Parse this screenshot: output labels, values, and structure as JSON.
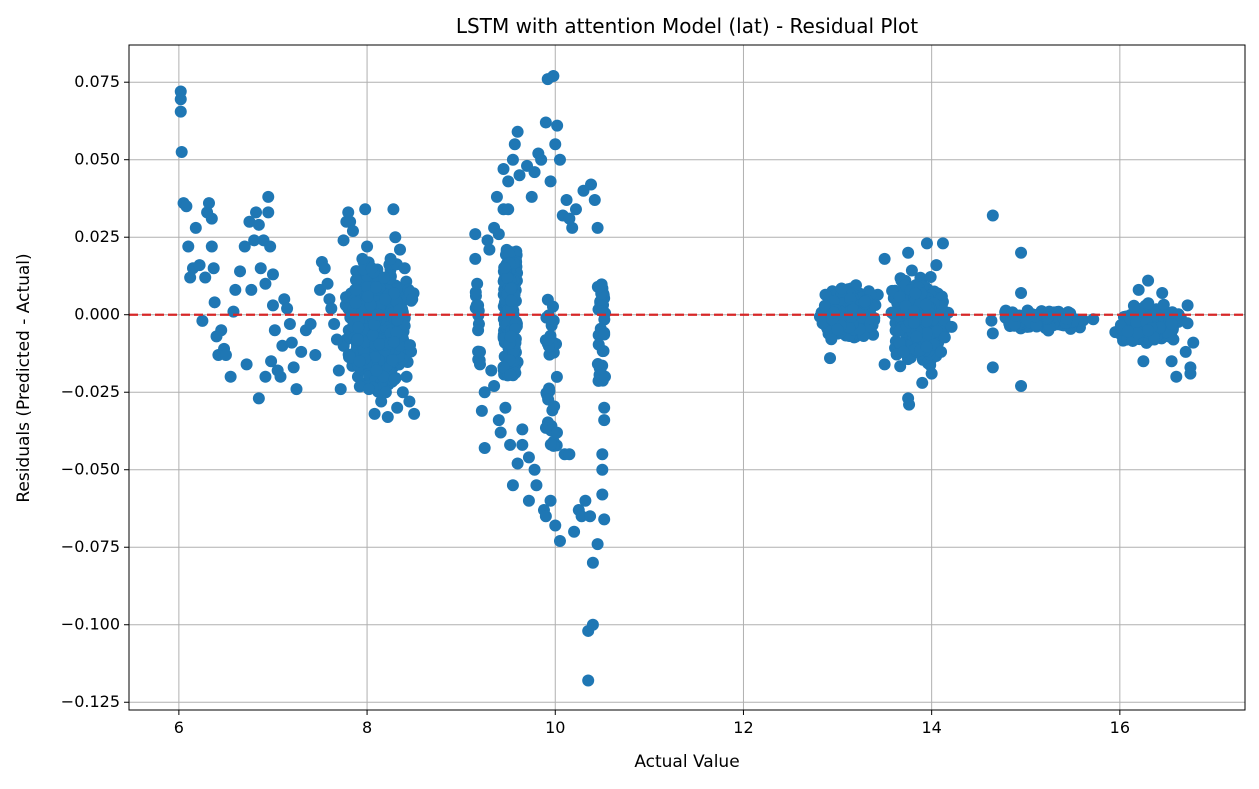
{
  "chart_data": {
    "type": "scatter",
    "title": "LSTM with attention Model (lat) - Residual Plot",
    "xlabel": "Actual Value",
    "ylabel": "Residuals (Predicted - Actual)",
    "xlim": [
      5.47,
      17.33
    ],
    "ylim": [
      -0.1275,
      0.087
    ],
    "xticks": [
      6,
      8,
      10,
      12,
      14,
      16
    ],
    "yticks": [
      -0.125,
      -0.1,
      -0.075,
      -0.05,
      -0.025,
      0.0,
      0.025,
      0.05,
      0.075
    ],
    "xtick_labels": [
      "6",
      "8",
      "10",
      "12",
      "14",
      "16"
    ],
    "ytick_labels": [
      "−0.125",
      "−0.100",
      "−0.075",
      "−0.050",
      "−0.025",
      "0.000",
      "0.025",
      "0.050",
      "0.075"
    ],
    "grid": true,
    "reference_line": {
      "y": 0.0,
      "style": "dashed",
      "color": "#d62728"
    },
    "marker_color": "#1f77b4",
    "points": [
      [
        6.02,
        0.072
      ],
      [
        6.02,
        0.0695
      ],
      [
        6.02,
        0.0655
      ],
      [
        6.03,
        0.0525
      ],
      [
        6.05,
        0.036
      ],
      [
        6.08,
        0.035
      ],
      [
        6.1,
        0.022
      ],
      [
        6.12,
        0.012
      ],
      [
        6.15,
        0.015
      ],
      [
        6.18,
        0.028
      ],
      [
        6.22,
        0.016
      ],
      [
        6.25,
        -0.002
      ],
      [
        6.28,
        0.012
      ],
      [
        6.3,
        0.033
      ],
      [
        6.32,
        0.036
      ],
      [
        6.35,
        0.031
      ],
      [
        6.35,
        0.022
      ],
      [
        6.37,
        0.015
      ],
      [
        6.38,
        0.004
      ],
      [
        6.4,
        -0.007
      ],
      [
        6.42,
        -0.013
      ],
      [
        6.45,
        -0.005
      ],
      [
        6.48,
        -0.011
      ],
      [
        6.5,
        -0.013
      ],
      [
        6.55,
        -0.02
      ],
      [
        6.58,
        0.001
      ],
      [
        6.6,
        0.008
      ],
      [
        6.65,
        0.014
      ],
      [
        6.7,
        0.022
      ],
      [
        6.72,
        -0.016
      ],
      [
        6.75,
        0.03
      ],
      [
        6.77,
        0.008
      ],
      [
        6.8,
        0.024
      ],
      [
        6.82,
        0.033
      ],
      [
        6.85,
        0.029
      ],
      [
        6.85,
        -0.027
      ],
      [
        6.87,
        0.015
      ],
      [
        6.9,
        0.024
      ],
      [
        6.92,
        0.01
      ],
      [
        6.92,
        -0.02
      ],
      [
        6.95,
        0.038
      ],
      [
        6.95,
        0.033
      ],
      [
        6.97,
        0.022
      ],
      [
        6.98,
        -0.015
      ],
      [
        7.0,
        0.013
      ],
      [
        7.0,
        0.003
      ],
      [
        7.02,
        -0.005
      ],
      [
        7.05,
        -0.018
      ],
      [
        7.08,
        -0.02
      ],
      [
        7.1,
        -0.01
      ],
      [
        7.12,
        0.005
      ],
      [
        7.15,
        0.002
      ],
      [
        7.18,
        -0.003
      ],
      [
        7.2,
        -0.009
      ],
      [
        7.22,
        -0.017
      ],
      [
        7.25,
        -0.024
      ],
      [
        7.3,
        -0.012
      ],
      [
        7.35,
        -0.005
      ],
      [
        7.4,
        -0.003
      ],
      [
        7.45,
        -0.013
      ],
      [
        7.5,
        0.008
      ],
      [
        7.52,
        0.017
      ],
      [
        7.55,
        0.015
      ],
      [
        7.58,
        0.01
      ],
      [
        7.6,
        0.005
      ],
      [
        7.62,
        0.002
      ],
      [
        7.65,
        -0.003
      ],
      [
        7.68,
        -0.008
      ],
      [
        7.7,
        -0.018
      ],
      [
        7.72,
        -0.024
      ],
      [
        7.75,
        0.024
      ],
      [
        7.78,
        0.03
      ],
      [
        7.8,
        0.033
      ],
      [
        7.82,
        0.03
      ],
      [
        7.85,
        0.027
      ],
      [
        7.88,
        0.008
      ],
      [
        7.9,
        -0.008
      ],
      [
        7.92,
        -0.015
      ],
      [
        7.95,
        0.018
      ],
      [
        7.98,
        0.034
      ],
      [
        8.0,
        0.022
      ],
      [
        8.02,
        -0.024
      ],
      [
        8.05,
        0.015
      ],
      [
        8.08,
        -0.032
      ],
      [
        8.1,
        -0.018
      ],
      [
        8.12,
        0.0
      ],
      [
        8.15,
        -0.028
      ],
      [
        8.18,
        0.012
      ],
      [
        8.2,
        -0.025
      ],
      [
        8.22,
        -0.033
      ],
      [
        8.25,
        0.018
      ],
      [
        8.28,
        0.034
      ],
      [
        8.3,
        0.025
      ],
      [
        8.32,
        -0.03
      ],
      [
        8.35,
        0.021
      ],
      [
        8.38,
        -0.025
      ],
      [
        8.4,
        0.015
      ],
      [
        8.42,
        -0.02
      ],
      [
        8.45,
        -0.028
      ],
      [
        8.48,
        0.005
      ],
      [
        8.5,
        -0.032
      ],
      [
        9.15,
        0.026
      ],
      [
        9.15,
        0.018
      ],
      [
        9.17,
        0.01
      ],
      [
        9.18,
        0.003
      ],
      [
        9.18,
        -0.005
      ],
      [
        9.2,
        -0.012
      ],
      [
        9.2,
        -0.016
      ],
      [
        9.22,
        -0.031
      ],
      [
        9.25,
        -0.025
      ],
      [
        9.25,
        -0.043
      ],
      [
        9.28,
        0.024
      ],
      [
        9.3,
        0.021
      ],
      [
        9.32,
        -0.018
      ],
      [
        9.35,
        0.028
      ],
      [
        9.35,
        -0.023
      ],
      [
        9.38,
        0.038
      ],
      [
        9.4,
        0.026
      ],
      [
        9.4,
        -0.034
      ],
      [
        9.42,
        -0.038
      ],
      [
        9.45,
        0.047
      ],
      [
        9.45,
        0.034
      ],
      [
        9.47,
        -0.03
      ],
      [
        9.5,
        0.043
      ],
      [
        9.5,
        0.034
      ],
      [
        9.52,
        -0.042
      ],
      [
        9.55,
        0.05
      ],
      [
        9.55,
        -0.055
      ],
      [
        9.57,
        0.055
      ],
      [
        9.6,
        0.059
      ],
      [
        9.6,
        -0.048
      ],
      [
        9.62,
        0.045
      ],
      [
        9.65,
        -0.037
      ],
      [
        9.65,
        -0.042
      ],
      [
        9.7,
        0.048
      ],
      [
        9.72,
        -0.046
      ],
      [
        9.72,
        -0.06
      ],
      [
        9.75,
        0.038
      ],
      [
        9.78,
        0.046
      ],
      [
        9.78,
        -0.05
      ],
      [
        9.8,
        -0.055
      ],
      [
        9.82,
        0.052
      ],
      [
        9.85,
        0.05
      ],
      [
        9.88,
        -0.063
      ],
      [
        9.9,
        0.062
      ],
      [
        9.9,
        -0.065
      ],
      [
        9.92,
        0.076
      ],
      [
        9.95,
        0.043
      ],
      [
        9.95,
        -0.06
      ],
      [
        9.98,
        0.077
      ],
      [
        10.0,
        0.055
      ],
      [
        10.0,
        -0.068
      ],
      [
        10.02,
        0.061
      ],
      [
        10.05,
        0.05
      ],
      [
        10.05,
        -0.073
      ],
      [
        10.08,
        0.032
      ],
      [
        10.1,
        -0.045
      ],
      [
        10.12,
        0.037
      ],
      [
        10.15,
        0.031
      ],
      [
        10.15,
        -0.045
      ],
      [
        10.18,
        0.028
      ],
      [
        10.2,
        -0.07
      ],
      [
        10.22,
        0.034
      ],
      [
        10.25,
        -0.063
      ],
      [
        10.28,
        -0.065
      ],
      [
        10.3,
        0.04
      ],
      [
        10.32,
        -0.06
      ],
      [
        10.35,
        -0.118
      ],
      [
        10.35,
        -0.102
      ],
      [
        10.37,
        -0.065
      ],
      [
        10.38,
        0.042
      ],
      [
        10.4,
        -0.08
      ],
      [
        10.4,
        -0.1
      ],
      [
        10.42,
        0.037
      ],
      [
        10.45,
        0.028
      ],
      [
        10.45,
        -0.074
      ],
      [
        10.47,
        0.009
      ],
      [
        10.5,
        -0.045
      ],
      [
        10.5,
        -0.05
      ],
      [
        10.5,
        -0.058
      ],
      [
        10.52,
        -0.066
      ],
      [
        10.52,
        -0.03
      ],
      [
        10.52,
        -0.034
      ]
    ],
    "column_clusters": [
      {
        "x": [
          9.45,
          9.6
        ],
        "y": [
          -0.02,
          0.022
        ],
        "n": 170
      },
      {
        "x": [
          9.9,
          10.02
        ],
        "y": [
          -0.045,
          0.007
        ],
        "n": 35
      },
      {
        "x": [
          10.45,
          10.53
        ],
        "y": [
          -0.022,
          0.01
        ],
        "n": 35
      },
      {
        "x": [
          9.15,
          9.2
        ],
        "y": [
          -0.016,
          0.01
        ],
        "n": 10
      }
    ],
    "dense_clusters": [
      {
        "x": [
          7.7,
          8.55
        ],
        "y": [
          -0.027,
          0.02
        ],
        "n": 900
      },
      {
        "x": [
          12.75,
          13.5
        ],
        "y": [
          -0.01,
          0.011
        ],
        "n": 450
      },
      {
        "x": [
          13.5,
          14.25
        ],
        "y": [
          -0.02,
          0.016
        ],
        "n": 550
      },
      {
        "x": [
          14.55,
          15.8
        ],
        "y": [
          -0.006,
          0.003
        ],
        "n": 160
      },
      {
        "x": [
          15.8,
          16.8
        ],
        "y": [
          -0.012,
          0.006
        ],
        "n": 200
      }
    ],
    "extra_points": [
      [
        12.92,
        -0.014
      ],
      [
        13.5,
        0.018
      ],
      [
        13.5,
        -0.016
      ],
      [
        13.75,
        0.02
      ],
      [
        13.75,
        -0.027
      ],
      [
        13.76,
        -0.029
      ],
      [
        13.9,
        -0.022
      ],
      [
        13.95,
        0.023
      ],
      [
        14.0,
        -0.019
      ],
      [
        14.05,
        0.016
      ],
      [
        14.12,
        0.023
      ],
      [
        14.1,
        -0.012
      ],
      [
        14.65,
        0.032
      ],
      [
        14.65,
        -0.017
      ],
      [
        14.65,
        -0.006
      ],
      [
        14.95,
        0.02
      ],
      [
        14.95,
        0.007
      ],
      [
        14.95,
        -0.023
      ],
      [
        16.2,
        0.008
      ],
      [
        16.25,
        -0.015
      ],
      [
        16.3,
        0.011
      ],
      [
        16.3,
        -0.005
      ],
      [
        16.45,
        0.007
      ],
      [
        16.55,
        -0.015
      ],
      [
        16.6,
        -0.02
      ],
      [
        16.7,
        -0.012
      ],
      [
        16.72,
        0.003
      ],
      [
        16.75,
        -0.017
      ],
      [
        16.75,
        -0.019
      ],
      [
        16.78,
        -0.009
      ]
    ]
  }
}
